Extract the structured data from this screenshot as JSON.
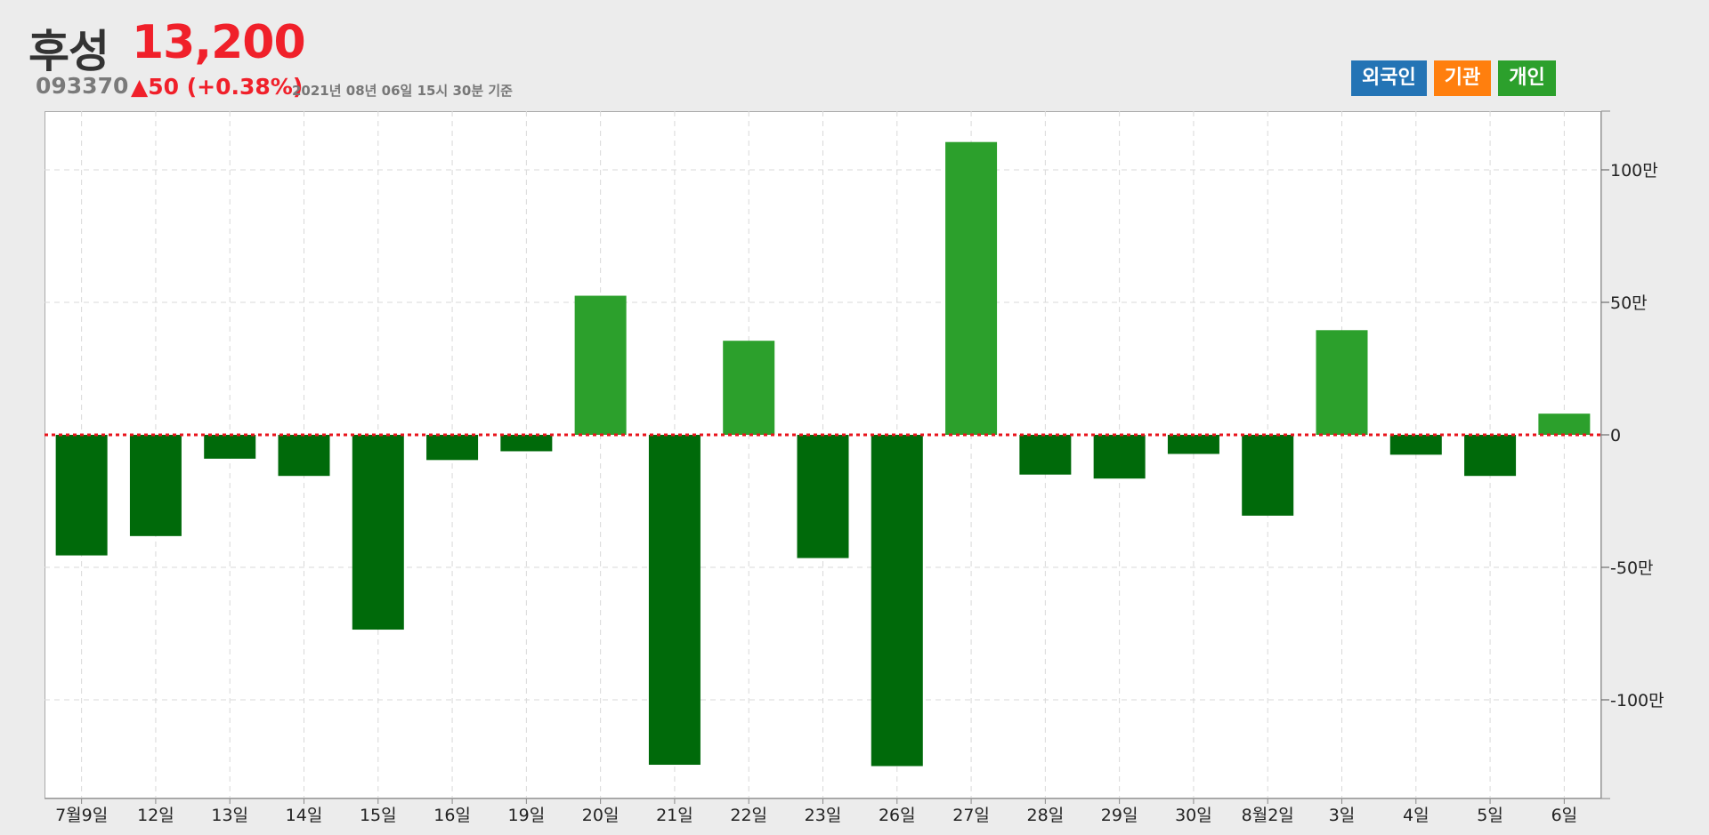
{
  "header": {
    "stock_name": "후성",
    "stock_price": "13,200",
    "stock_code": "093370",
    "change": "▲50 (+0.38%)",
    "timestamp": "2021년 08년 06일 15시 30분 기준"
  },
  "tabs": [
    {
      "label": "외국인",
      "color": "#2474b5"
    },
    {
      "label": "기관",
      "color": "#ff7f0e"
    },
    {
      "label": "개인",
      "color": "#2ca02c"
    }
  ],
  "colors": {
    "positive": "#2ca02c",
    "negative": "#006a0a",
    "zero_line": "#e8141c",
    "grid": "#d8d8d8"
  },
  "chart_data": {
    "type": "bar",
    "categories": [
      "7월9일",
      "12일",
      "13일",
      "14일",
      "15일",
      "16일",
      "19일",
      "20일",
      "21일",
      "22일",
      "23일",
      "26일",
      "27일",
      "28일",
      "29일",
      "30일",
      "8월2일",
      "3일",
      "4일",
      "5일",
      "6일"
    ],
    "values": [
      -455000,
      -382000,
      -90000,
      -155000,
      -735000,
      -95000,
      -62000,
      525000,
      -1245000,
      355000,
      -465000,
      -1250000,
      1105000,
      -150000,
      -165000,
      -72000,
      -305000,
      395000,
      -75000,
      -155000,
      80000
    ],
    "ylim": [
      -1375000,
      1225000
    ],
    "yticks": [
      1000000,
      500000,
      0,
      -500000,
      -1000000
    ],
    "ytick_labels": [
      "100만",
      "50만",
      "0",
      "-50만",
      "-100만"
    ],
    "grid": true,
    "zero_line": "dotted"
  }
}
